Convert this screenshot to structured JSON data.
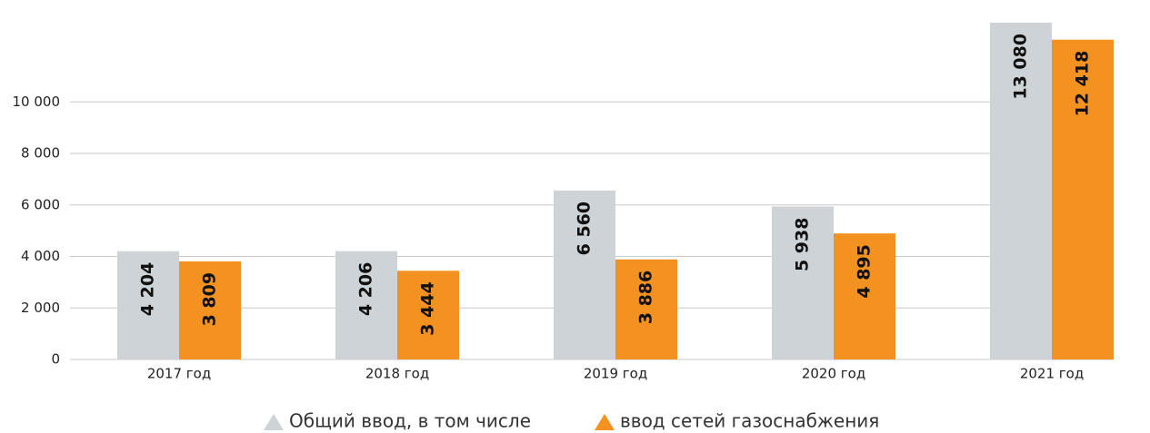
{
  "chart_data": {
    "type": "bar",
    "categories": [
      "2017 год",
      "2018 год",
      "2019 год",
      "2020 год",
      "2021 год"
    ],
    "series": [
      {
        "name": "Общий ввод, в том числе",
        "color": "#cdd3d6",
        "values": [
          4204,
          4206,
          6560,
          5938,
          13080
        ],
        "value_labels": [
          "4 204",
          "4 206",
          "6 560",
          "5 938",
          "13 080"
        ]
      },
      {
        "name": "ввод сетей газоснабжения",
        "color": "#f39220",
        "values": [
          3809,
          3444,
          3886,
          4895,
          12418
        ],
        "value_labels": [
          "3 809",
          "3 444",
          "3 886",
          "4 895",
          "12 418"
        ]
      }
    ],
    "ylim": [
      0,
      13500
    ],
    "yticks": [
      0,
      {
        "value": 2000,
        "label": "2 000"
      },
      {
        "value": 4000,
        "label": "4 000"
      },
      {
        "value": 6000,
        "label": "6 000"
      },
      {
        "value": 8000,
        "label": "8 000"
      },
      {
        "value": 10000,
        "label": "10 000"
      }
    ],
    "grid": true,
    "legend": "bottom"
  }
}
